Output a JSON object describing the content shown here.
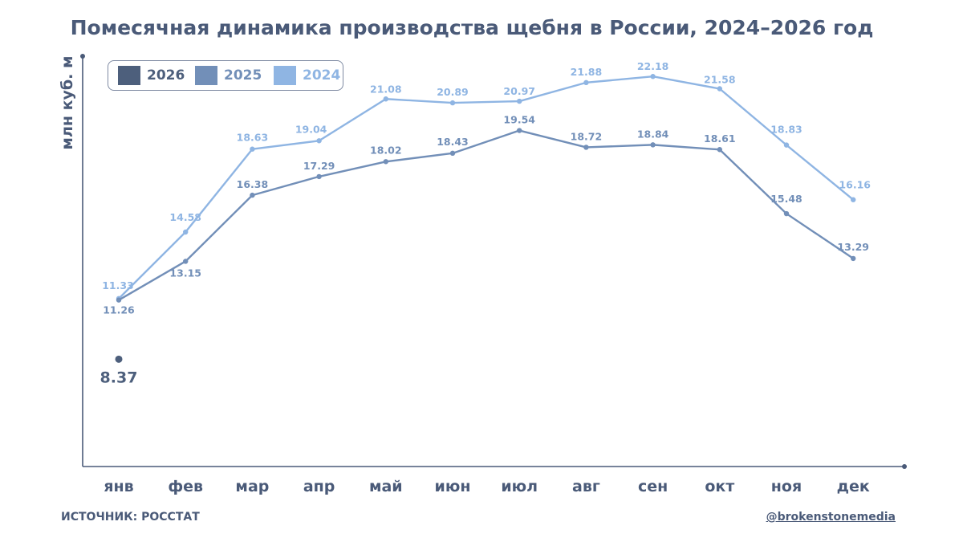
{
  "chart_data": {
    "type": "line",
    "title": "Помесячная динамика производства щебня в России, 2024–2026 год",
    "xlabel": "",
    "ylabel": "млн куб. м",
    "ylim": [
      0,
      25
    ],
    "categories": [
      "янв",
      "фев",
      "мар",
      "апр",
      "май",
      "июн",
      "июл",
      "авг",
      "сен",
      "окт",
      "ноя",
      "дек"
    ],
    "series": [
      {
        "name": "2026",
        "color": "#4d5f7c",
        "values": [
          8.37,
          null,
          null,
          null,
          null,
          null,
          null,
          null,
          null,
          null,
          null,
          null
        ]
      },
      {
        "name": "2025",
        "color": "#728fb8",
        "values": [
          11.26,
          13.15,
          16.38,
          17.29,
          18.02,
          18.43,
          19.54,
          18.72,
          18.84,
          18.61,
          15.48,
          13.29
        ]
      },
      {
        "name": "2024",
        "color": "#8fb5e3",
        "values": [
          11.33,
          14.58,
          18.63,
          19.04,
          21.08,
          20.89,
          20.97,
          21.88,
          22.18,
          21.58,
          18.83,
          16.16
        ]
      }
    ],
    "legend": "top-left",
    "grid": false
  },
  "footer": {
    "source": "ИСТОЧНИК: РОССТАТ",
    "handle": "@brokenstonemedia"
  }
}
